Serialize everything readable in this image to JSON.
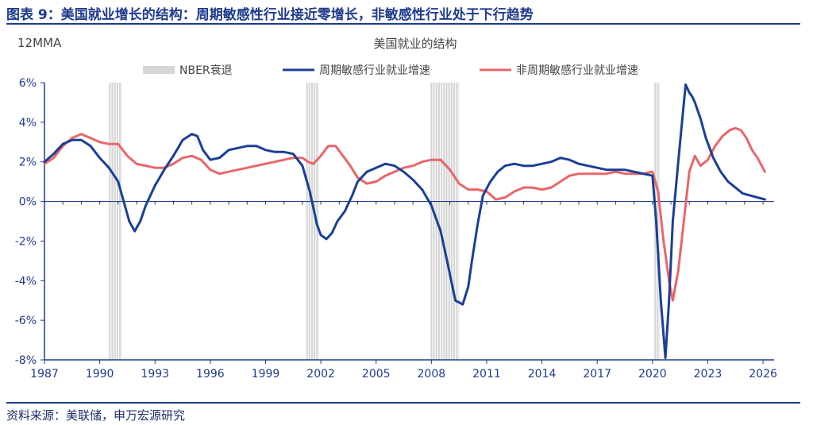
{
  "figure_title": "图表 9：美国就业增长的结构：周期敏感性行业接近零增长，非敏感性行业处于下行趋势",
  "source": "资料来源：美联储，申万宏源研究",
  "colors": {
    "cyclical": "#1a3f96",
    "noncyclical": "#e8666a",
    "recession": "#d6d6d6",
    "axis": "#1f3b8c"
  },
  "chart_data": {
    "type": "line",
    "title": "美国就业的结构",
    "unit_label": "12MMA",
    "ylim": [
      -8,
      6
    ],
    "y_ticks": [
      "6%",
      "4%",
      "2%",
      "0%",
      "-2%",
      "-4%",
      "-6%",
      "-8%"
    ],
    "y_tick_values": [
      6,
      4,
      2,
      0,
      -2,
      -4,
      -6,
      -8
    ],
    "xlim": [
      1987,
      2026.6
    ],
    "x_ticks": [
      "1987",
      "1990",
      "1993",
      "1996",
      "1999",
      "2002",
      "2005",
      "2008",
      "2011",
      "2014",
      "2017",
      "2020",
      "2023",
      "2026"
    ],
    "x_tick_values": [
      1987,
      1990,
      1993,
      1996,
      1999,
      2002,
      2005,
      2008,
      2011,
      2014,
      2017,
      2020,
      2023,
      2026
    ],
    "recessions": [
      {
        "label": "1990-1991",
        "start": 1990.5,
        "end": 1991.2
      },
      {
        "label": "2001",
        "start": 2001.2,
        "end": 2001.9
      },
      {
        "label": "2007-2009",
        "start": 2007.95,
        "end": 2009.5
      },
      {
        "label": "2020",
        "start": 2020.1,
        "end": 2020.4
      }
    ],
    "legend": [
      "NBER衰退",
      "周期敏感行业就业增速",
      "非周期敏感行业就业增速"
    ],
    "series": [
      {
        "name": "周期敏感行业就业增速",
        "x": [
          1987.0,
          1987.5,
          1988.0,
          1988.5,
          1989.0,
          1989.5,
          1990.0,
          1990.5,
          1991.0,
          1991.3,
          1991.6,
          1991.9,
          1992.2,
          1992.5,
          1993.0,
          1993.5,
          1994.0,
          1994.5,
          1995.0,
          1995.3,
          1995.6,
          1996.0,
          1996.5,
          1997.0,
          1997.5,
          1998.0,
          1998.5,
          1999.0,
          1999.5,
          2000.0,
          2000.5,
          2001.0,
          2001.4,
          2001.8,
          2002.0,
          2002.3,
          2002.6,
          2002.9,
          2003.3,
          2003.7,
          2004.0,
          2004.5,
          2005.0,
          2005.5,
          2006.0,
          2006.5,
          2007.0,
          2007.5,
          2008.0,
          2008.5,
          2008.9,
          2009.3,
          2009.7,
          2010.0,
          2010.2,
          2010.5,
          2010.8,
          2011.2,
          2011.6,
          2012.0,
          2012.5,
          2013.0,
          2013.5,
          2014.0,
          2014.5,
          2015.0,
          2015.5,
          2016.0,
          2016.5,
          2017.0,
          2017.5,
          2018.0,
          2018.5,
          2019.0,
          2019.5,
          2020.0,
          2020.2,
          2020.45,
          2020.7,
          2020.9,
          2021.1,
          2021.4,
          2021.6,
          2021.8,
          2022.0,
          2022.15,
          2022.3,
          2022.6,
          2022.9,
          2023.3,
          2023.7,
          2024.1,
          2024.5,
          2024.9,
          2025.3,
          2025.7,
          2026.1
        ],
        "values": [
          2.0,
          2.4,
          2.9,
          3.1,
          3.1,
          2.8,
          2.2,
          1.7,
          1.0,
          0.0,
          -1.0,
          -1.5,
          -1.0,
          -0.2,
          0.8,
          1.6,
          2.3,
          3.1,
          3.4,
          3.3,
          2.6,
          2.1,
          2.2,
          2.6,
          2.7,
          2.8,
          2.8,
          2.6,
          2.5,
          2.5,
          2.4,
          1.8,
          0.5,
          -1.2,
          -1.7,
          -1.9,
          -1.6,
          -1.0,
          -0.5,
          0.3,
          1.0,
          1.5,
          1.7,
          1.9,
          1.8,
          1.5,
          1.1,
          0.6,
          -0.2,
          -1.5,
          -3.2,
          -5.0,
          -5.2,
          -4.3,
          -3.0,
          -1.2,
          0.3,
          1.0,
          1.5,
          1.8,
          1.9,
          1.8,
          1.8,
          1.9,
          2.0,
          2.2,
          2.1,
          1.9,
          1.8,
          1.7,
          1.6,
          1.6,
          1.6,
          1.5,
          1.4,
          1.3,
          -1.0,
          -5.0,
          -7.9,
          -5.0,
          -1.0,
          2.0,
          4.0,
          5.9,
          5.5,
          5.3,
          5.0,
          4.2,
          3.2,
          2.2,
          1.5,
          1.0,
          0.7,
          0.4,
          0.3,
          0.2,
          0.1
        ]
      },
      {
        "name": "非周期敏感行业就业增速",
        "x": [
          1987.0,
          1987.5,
          1988.0,
          1988.5,
          1989.0,
          1989.5,
          1990.0,
          1990.5,
          1991.0,
          1991.5,
          1992.0,
          1992.5,
          1993.0,
          1993.5,
          1994.0,
          1994.5,
          1995.0,
          1995.5,
          1996.0,
          1996.5,
          1997.0,
          1997.5,
          1998.0,
          1998.5,
          1999.0,
          1999.5,
          2000.0,
          2000.5,
          2001.0,
          2001.3,
          2001.6,
          2002.0,
          2002.4,
          2002.8,
          2003.2,
          2003.6,
          2004.0,
          2004.5,
          2005.0,
          2005.5,
          2006.0,
          2006.5,
          2007.0,
          2007.5,
          2008.0,
          2008.5,
          2009.0,
          2009.5,
          2010.0,
          2010.5,
          2011.0,
          2011.5,
          2012.0,
          2012.5,
          2013.0,
          2013.5,
          2014.0,
          2014.5,
          2015.0,
          2015.5,
          2016.0,
          2016.5,
          2017.0,
          2017.5,
          2018.0,
          2018.5,
          2019.0,
          2019.5,
          2020.0,
          2020.3,
          2020.6,
          2020.9,
          2021.1,
          2021.4,
          2021.7,
          2022.0,
          2022.3,
          2022.6,
          2023.0,
          2023.4,
          2023.8,
          2024.2,
          2024.5,
          2024.8,
          2025.1,
          2025.4,
          2025.7,
          2026.1
        ],
        "values": [
          1.9,
          2.2,
          2.8,
          3.2,
          3.4,
          3.2,
          3.0,
          2.9,
          2.9,
          2.3,
          1.9,
          1.8,
          1.7,
          1.7,
          1.9,
          2.2,
          2.3,
          2.1,
          1.6,
          1.4,
          1.5,
          1.6,
          1.7,
          1.8,
          1.9,
          2.0,
          2.1,
          2.2,
          2.2,
          2.0,
          1.9,
          2.3,
          2.8,
          2.8,
          2.3,
          1.8,
          1.2,
          0.9,
          1.0,
          1.3,
          1.5,
          1.7,
          1.8,
          2.0,
          2.1,
          2.1,
          1.6,
          0.9,
          0.6,
          0.6,
          0.5,
          0.1,
          0.2,
          0.5,
          0.7,
          0.7,
          0.6,
          0.7,
          1.0,
          1.3,
          1.4,
          1.4,
          1.4,
          1.4,
          1.5,
          1.4,
          1.4,
          1.4,
          1.5,
          0.5,
          -2.0,
          -4.0,
          -5.0,
          -3.5,
          -1.0,
          1.5,
          2.3,
          1.8,
          2.1,
          2.8,
          3.3,
          3.6,
          3.7,
          3.6,
          3.2,
          2.6,
          2.2,
          1.5
        ]
      }
    ]
  }
}
